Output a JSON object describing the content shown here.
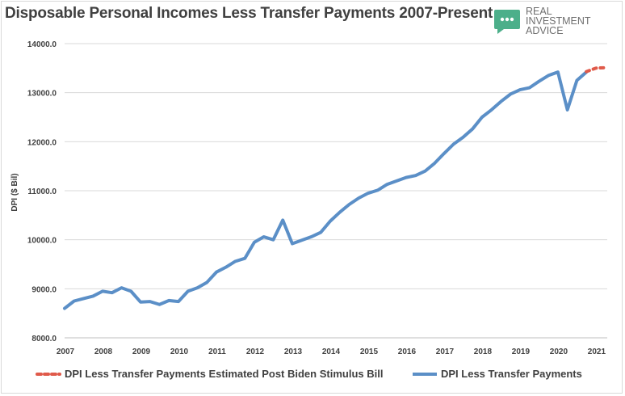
{
  "title": "Disposable Personal Incomes Less Transfer Payments 2007-Present",
  "logo": {
    "line1": "REAL",
    "line2": "INVESTMENT",
    "line3": "ADVICE",
    "icon": "speech-bubble-icon",
    "color": "#4caf8a"
  },
  "chart_data": {
    "type": "line",
    "ylabel": "DPI ($ Bil)",
    "xlabel": "",
    "ylim": [
      8000,
      14000
    ],
    "xlim": [
      2007,
      2021.3
    ],
    "y_ticks": [
      "8000.0",
      "9000.0",
      "10000.0",
      "11000.0",
      "12000.0",
      "13000.0",
      "14000.0"
    ],
    "x_ticks": [
      "2007",
      "2008",
      "2009",
      "2010",
      "2011",
      "2012",
      "2013",
      "2014",
      "2015",
      "2016",
      "2017",
      "2018",
      "2019",
      "2020",
      "2021"
    ],
    "grid": true,
    "legend_position": "bottom",
    "series": [
      {
        "name": "DPI Less Transfer Payments Estimated Post Biden Stimulus Bill",
        "color": "#e05a4a",
        "style": "dashed",
        "x": [
          2020.75,
          2021.0,
          2021.25
        ],
        "y": [
          13430,
          13500,
          13510
        ]
      },
      {
        "name": "DPI Less Transfer Payments",
        "color": "#5b8fc7",
        "style": "solid",
        "x": [
          2007.0,
          2007.25,
          2007.5,
          2007.75,
          2008.0,
          2008.25,
          2008.5,
          2008.75,
          2009.0,
          2009.25,
          2009.5,
          2009.75,
          2010.0,
          2010.25,
          2010.5,
          2010.75,
          2011.0,
          2011.25,
          2011.5,
          2011.75,
          2012.0,
          2012.25,
          2012.5,
          2012.75,
          2013.0,
          2013.25,
          2013.5,
          2013.75,
          2014.0,
          2014.25,
          2014.5,
          2014.75,
          2015.0,
          2015.25,
          2015.5,
          2015.75,
          2016.0,
          2016.25,
          2016.5,
          2016.75,
          2017.0,
          2017.25,
          2017.5,
          2017.75,
          2018.0,
          2018.25,
          2018.5,
          2018.75,
          2019.0,
          2019.25,
          2019.5,
          2019.75,
          2020.0,
          2020.25,
          2020.5,
          2020.75
        ],
        "y": [
          8600,
          8750,
          8800,
          8850,
          8950,
          8920,
          9020,
          8950,
          8730,
          8740,
          8680,
          8760,
          8740,
          8950,
          9020,
          9130,
          9340,
          9440,
          9560,
          9620,
          9950,
          10060,
          10000,
          10400,
          9920,
          9990,
          10060,
          10150,
          10380,
          10560,
          10720,
          10850,
          10950,
          11010,
          11130,
          11200,
          11270,
          11310,
          11400,
          11560,
          11760,
          11950,
          12090,
          12260,
          12500,
          12650,
          12820,
          12970,
          13060,
          13100,
          13230,
          13350,
          13420,
          12650,
          13250,
          13420
        ]
      }
    ]
  }
}
